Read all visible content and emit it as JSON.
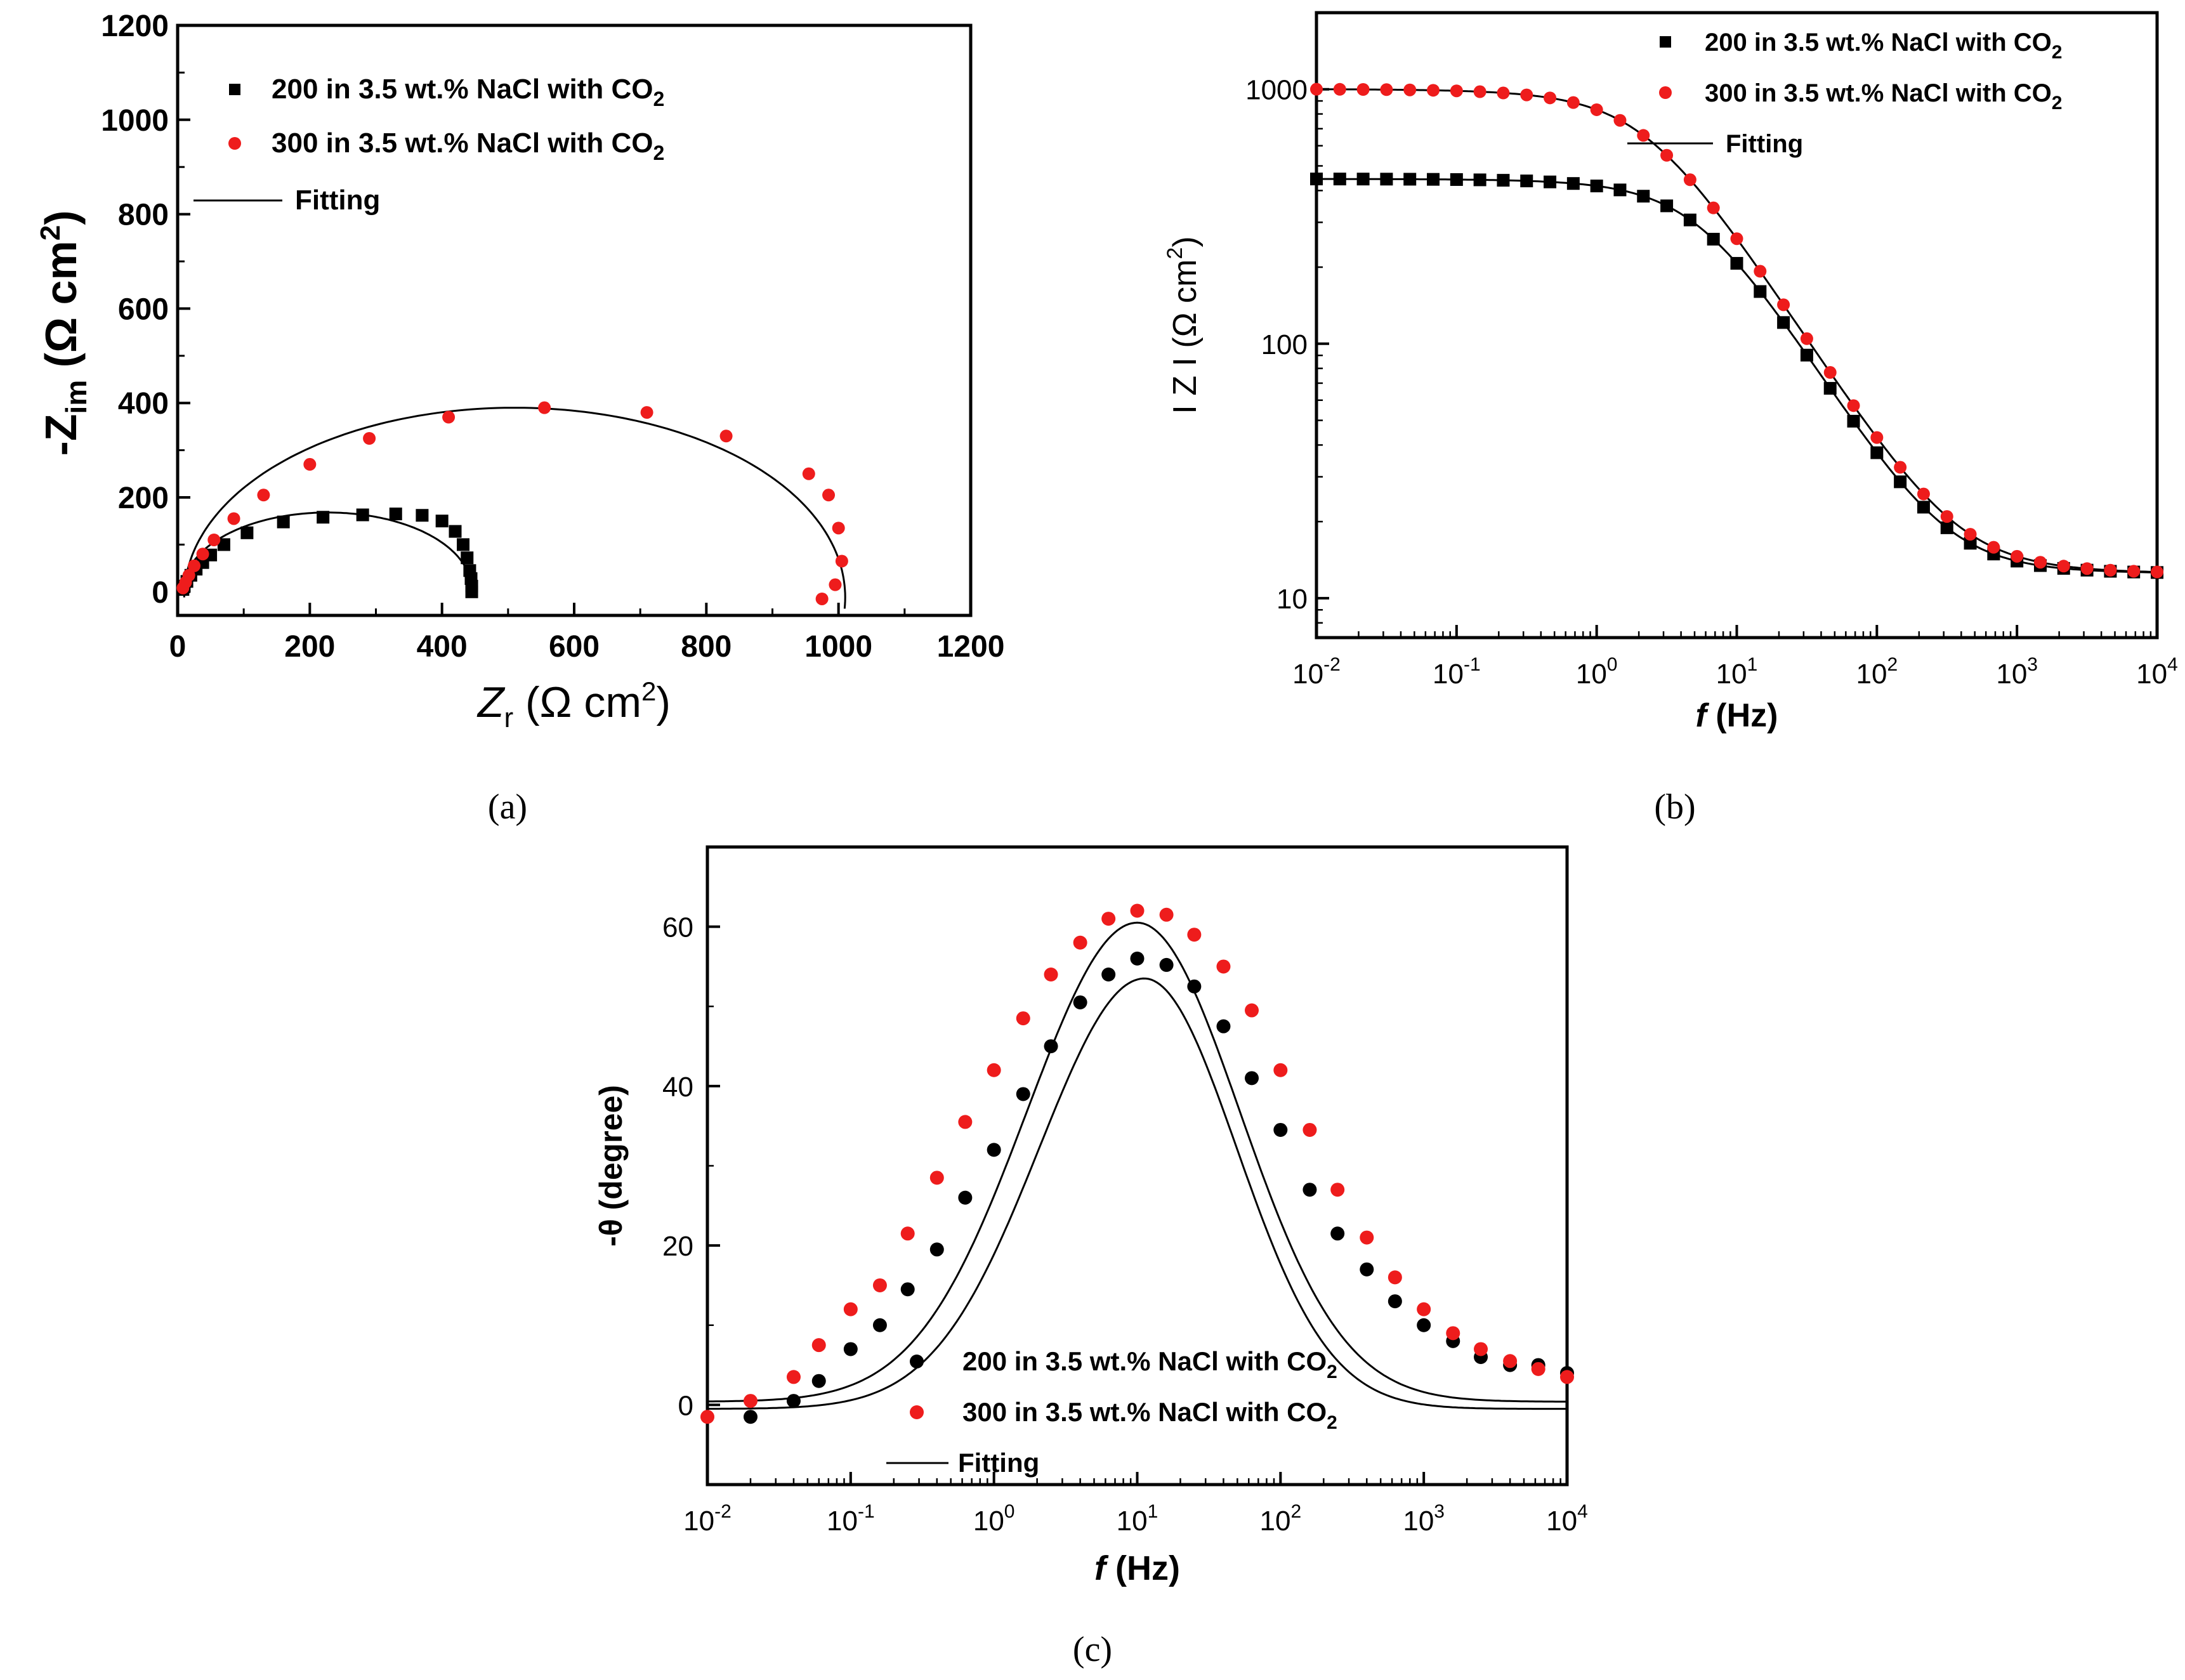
{
  "captions": [
    "(a)",
    "(b)",
    "(c)"
  ],
  "colors": {
    "s200": "#000000",
    "s300": "#ee1c1c",
    "fit": "#000000",
    "axis": "#000000"
  },
  "chart_data": [
    {
      "id": "a",
      "type": "scatter",
      "xlabel": "Z",
      "xlabel_sub": "r",
      "xlabel_unit": "(Ω cm",
      "xlabel_sup": "2",
      "xlabel_tail": ")",
      "ylabel": "-Z",
      "ylabel_sub": "im",
      "ylabel_unit": "(Ω cm",
      "ylabel_sup": "2",
      "ylabel_tail": ")",
      "xlim": [
        0,
        1200
      ],
      "ylim": [
        -50,
        1200
      ],
      "xticks": [
        "0",
        "200",
        "400",
        "600",
        "800",
        "1000",
        "1200"
      ],
      "yticks": [
        "0",
        "200",
        "400",
        "600",
        "800",
        "1000",
        "1200"
      ],
      "legend": [
        "200 in 3.5 wt.% NaCl with CO",
        "300 in 3.5 wt.% NaCl with CO",
        "Fitting"
      ],
      "legend_sub": "2",
      "series": [
        {
          "name": "200 in 3.5 wt.% NaCl with CO2",
          "marker": "square",
          "color": "#000000",
          "x": [
            445,
            445,
            444,
            442,
            438,
            432,
            420,
            400,
            370,
            330,
            280,
            220,
            160,
            105,
            70,
            50,
            38,
            28,
            20,
            14,
            10,
            8
          ],
          "y": [
            0,
            12,
            28,
            45,
            72,
            100,
            128,
            150,
            162,
            165,
            163,
            158,
            148,
            125,
            100,
            78,
            62,
            48,
            35,
            22,
            12,
            5
          ]
        },
        {
          "name": "300 in 3.5 wt.% NaCl with CO2",
          "marker": "circle",
          "color": "#ee1c1c",
          "x": [
            975,
            995,
            1005,
            1000,
            985,
            955,
            830,
            710,
            555,
            410,
            290,
            200,
            130,
            85,
            55,
            38,
            25,
            17,
            12,
            8
          ],
          "y": [
            -15,
            15,
            65,
            135,
            205,
            250,
            330,
            380,
            390,
            370,
            325,
            270,
            205,
            155,
            110,
            80,
            55,
            35,
            20,
            8
          ]
        }
      ],
      "fits": [
        {
          "name": "Fitting 200",
          "cx": 227,
          "cy": 0,
          "rx": 218,
          "ry": 168,
          "start": 18
        },
        {
          "name": "Fitting 300",
          "cx": 510,
          "cy": -20,
          "rx": 500,
          "ry": 410,
          "start": 8
        }
      ]
    },
    {
      "id": "b",
      "type": "line",
      "xscale": "log",
      "yscale": "log",
      "xlabel": "f",
      "xlabel_unit": "(Hz)",
      "ylabel": "I Z I (Ω cm",
      "ylabel_sup": "2",
      "ylabel_tail": ")",
      "xlim": [
        0.01,
        10000
      ],
      "ylim": [
        7,
        2000
      ],
      "xtick_exps": [
        "-2",
        "-1",
        "0",
        "1",
        "2",
        "3",
        "4"
      ],
      "yticks": [
        10,
        100,
        1000
      ],
      "ytick_labels": [
        "10",
        "100",
        "1000"
      ],
      "legend": [
        "200 in 3.5 wt.% NaCl with CO",
        "300 in 3.5 wt.% NaCl with CO",
        "Fitting"
      ],
      "legend_sub": "2",
      "series": [
        {
          "name": "200 in 3.5 wt.% NaCl with CO2",
          "marker": "square",
          "color": "#000000",
          "R0": 12.5,
          "R1": 432,
          "tau": 0.03,
          "alpha": 0.88,
          "npts": 37,
          "x_start": -2,
          "x_end": 4
        },
        {
          "name": "300 in 3.5 wt.% NaCl with CO2",
          "marker": "circle",
          "color": "#ee1c1c",
          "R0": 12.5,
          "R1": 990,
          "tau": 0.07,
          "alpha": 0.86,
          "npts": 37,
          "x_start": -2,
          "x_end": 4
        }
      ]
    },
    {
      "id": "c",
      "type": "line",
      "xscale": "log",
      "xlabel": "f",
      "xlabel_unit": "(Hz)",
      "ylabel": "-θ (degree)",
      "xlim": [
        0.01,
        10000
      ],
      "ylim": [
        -10,
        70
      ],
      "xtick_exps": [
        "-2",
        "-1",
        "0",
        "1",
        "2",
        "3",
        "4"
      ],
      "yticks": [
        "0",
        "20",
        "40",
        "60"
      ],
      "legend": [
        "200 in 3.5 wt.% NaCl with CO",
        "300 in 3.5 wt.% NaCl with CO",
        "Fitting"
      ],
      "legend_sub": "2",
      "series": [
        {
          "name": "200 in 3.5 wt.% NaCl with CO2",
          "marker": "circle",
          "color": "#000000",
          "x": [
            0.02,
            0.04,
            0.06,
            0.1,
            0.16,
            0.25,
            0.4,
            0.63,
            1,
            1.6,
            2.5,
            4,
            6.3,
            10,
            16,
            25,
            40,
            63,
            100,
            160,
            250,
            400,
            630,
            1000,
            1600,
            2500,
            4000,
            6300,
            10000
          ],
          "y": [
            -1.5,
            0.5,
            3,
            7,
            10,
            14.5,
            19.5,
            26,
            32,
            39,
            45,
            50.5,
            54,
            56,
            55.2,
            52.5,
            47.5,
            41,
            34.5,
            27,
            21.5,
            17,
            13,
            10,
            8,
            6,
            5,
            5,
            4
          ]
        },
        {
          "name": "300 in 3.5 wt.% NaCl with CO2",
          "marker": "circle",
          "color": "#ee1c1c",
          "x": [
            0.01,
            0.02,
            0.04,
            0.06,
            0.1,
            0.16,
            0.25,
            0.4,
            0.63,
            1,
            1.6,
            2.5,
            4,
            6.3,
            10,
            16,
            25,
            40,
            63,
            100,
            160,
            250,
            400,
            630,
            1000,
            1600,
            2500,
            4000,
            6300,
            10000
          ],
          "y": [
            -1.5,
            0.5,
            3.5,
            7.5,
            12,
            15,
            21.5,
            28.5,
            35.5,
            42,
            48.5,
            54,
            58,
            61,
            62,
            61.5,
            59,
            55,
            49.5,
            42,
            34.5,
            27,
            21,
            16,
            12,
            9,
            7,
            5.5,
            4.5,
            3.5
          ]
        }
      ],
      "fits": [
        {
          "name": "Fitting 200",
          "peak": 53.5,
          "log_center": 1.05,
          "width_left": 0.82,
          "width_right": 0.72,
          "base": -0.5
        },
        {
          "name": "Fitting 300",
          "peak": 60.5,
          "log_center": 1.0,
          "width_left": 0.86,
          "width_right": 0.8,
          "base": 0.4
        }
      ]
    }
  ]
}
